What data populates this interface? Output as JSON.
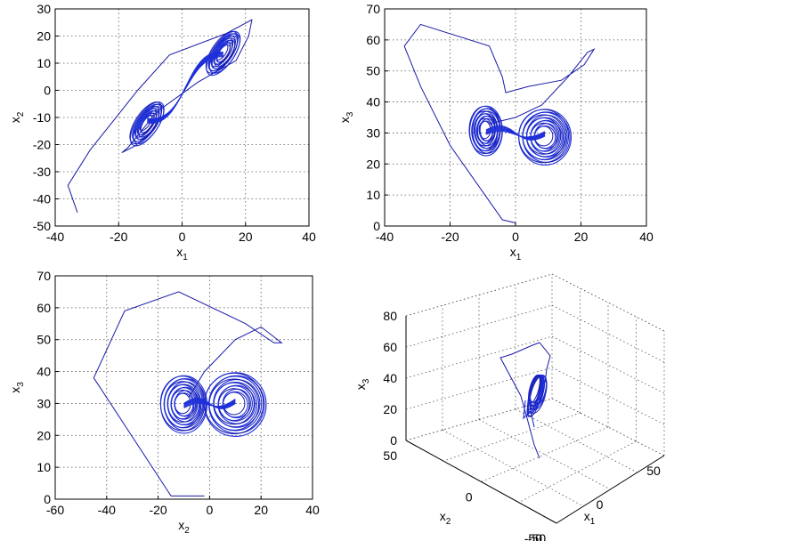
{
  "chart_data": [
    {
      "type": "line",
      "id": "x1x2",
      "title": "",
      "xlabel": "x",
      "xlabel_sub": "1",
      "ylabel": "x",
      "ylabel_sub": "2",
      "xlim": [
        -40,
        40
      ],
      "ylim": [
        -50,
        30
      ],
      "xticks": [
        -40,
        -20,
        0,
        20,
        40
      ],
      "yticks": [
        -50,
        -40,
        -30,
        -20,
        -10,
        0,
        10,
        20,
        30
      ],
      "grid": true,
      "outer_path": [
        [
          -33,
          -45
        ],
        [
          -36,
          -35
        ],
        [
          -29,
          -22
        ],
        [
          -14,
          0
        ],
        [
          -4,
          13
        ],
        [
          14,
          21
        ],
        [
          22,
          26
        ],
        [
          21,
          20
        ],
        [
          17,
          11
        ],
        [
          5,
          3
        ],
        [
          -8,
          -8
        ],
        [
          -17,
          -21
        ],
        [
          -19,
          -23
        ],
        [
          -14,
          -20
        ]
      ],
      "loops": [
        {
          "cx": 13,
          "cy": 14,
          "rx": 8,
          "ry": 4,
          "tilt_deg": 56
        },
        {
          "cx": -11,
          "cy": -12,
          "rx": 8,
          "ry": 4,
          "tilt_deg": 56
        }
      ]
    },
    {
      "type": "line",
      "id": "x1x3",
      "title": "",
      "xlabel": "x",
      "xlabel_sub": "1",
      "ylabel": "x",
      "ylabel_sub": "3",
      "xlim": [
        -40,
        40
      ],
      "ylim": [
        0,
        70
      ],
      "xticks": [
        -40,
        -20,
        0,
        20,
        40
      ],
      "yticks": [
        0,
        10,
        20,
        30,
        40,
        50,
        60,
        70
      ],
      "grid": true,
      "outer_path": [
        [
          0,
          1
        ],
        [
          -4,
          2
        ],
        [
          -20,
          26
        ],
        [
          -29,
          45
        ],
        [
          -34,
          58
        ],
        [
          -29,
          65
        ],
        [
          -8,
          58
        ],
        [
          -4,
          48
        ],
        [
          -3,
          43
        ],
        [
          4,
          45
        ],
        [
          14,
          47
        ],
        [
          21,
          52
        ],
        [
          24,
          57
        ],
        [
          22,
          56
        ],
        [
          16,
          48
        ],
        [
          8,
          39
        ],
        [
          0,
          35
        ],
        [
          -8,
          33
        ]
      ],
      "loops": [
        {
          "cx": -9,
          "cy": 31,
          "rx": 5,
          "ry": 8,
          "tilt_deg": 0
        },
        {
          "cx": 9,
          "cy": 29,
          "rx": 8,
          "ry": 9,
          "tilt_deg": 0
        }
      ]
    },
    {
      "type": "line",
      "id": "x2x3",
      "title": "",
      "xlabel": "x",
      "xlabel_sub": "2",
      "ylabel": "x",
      "ylabel_sub": "3",
      "xlim": [
        -60,
        40
      ],
      "ylim": [
        0,
        70
      ],
      "xticks": [
        -60,
        -40,
        -20,
        0,
        20,
        40
      ],
      "yticks": [
        0,
        10,
        20,
        30,
        40,
        50,
        60,
        70
      ],
      "grid": true,
      "outer_path": [
        [
          -2,
          1
        ],
        [
          -15,
          1
        ],
        [
          -32,
          22
        ],
        [
          -45,
          38
        ],
        [
          -33,
          59
        ],
        [
          -12,
          65
        ],
        [
          14,
          55
        ],
        [
          25,
          49
        ],
        [
          28,
          49
        ],
        [
          20,
          54
        ],
        [
          10,
          50
        ],
        [
          4,
          45
        ],
        [
          -2,
          40
        ],
        [
          -8,
          32
        ]
      ],
      "loops": [
        {
          "cx": -10,
          "cy": 30,
          "rx": 9,
          "ry": 9,
          "tilt_deg": 0
        },
        {
          "cx": 10,
          "cy": 30,
          "rx": 12,
          "ry": 10,
          "tilt_deg": 0
        }
      ]
    },
    {
      "type": "line3d",
      "id": "x1x2x3",
      "title": "",
      "xlabel": "x",
      "xlabel_sub": "1",
      "ylabel": "x",
      "ylabel_sub": "2",
      "zlabel": "x",
      "zlabel_sub": "3",
      "xlim": [
        -50,
        50
      ],
      "ylim": [
        -50,
        50
      ],
      "zlim": [
        0,
        80
      ],
      "xticks": [
        -50,
        0,
        50
      ],
      "yticks": [
        -50,
        0,
        50
      ],
      "zticks": [
        0,
        20,
        40,
        60,
        80
      ],
      "grid": true
    }
  ]
}
